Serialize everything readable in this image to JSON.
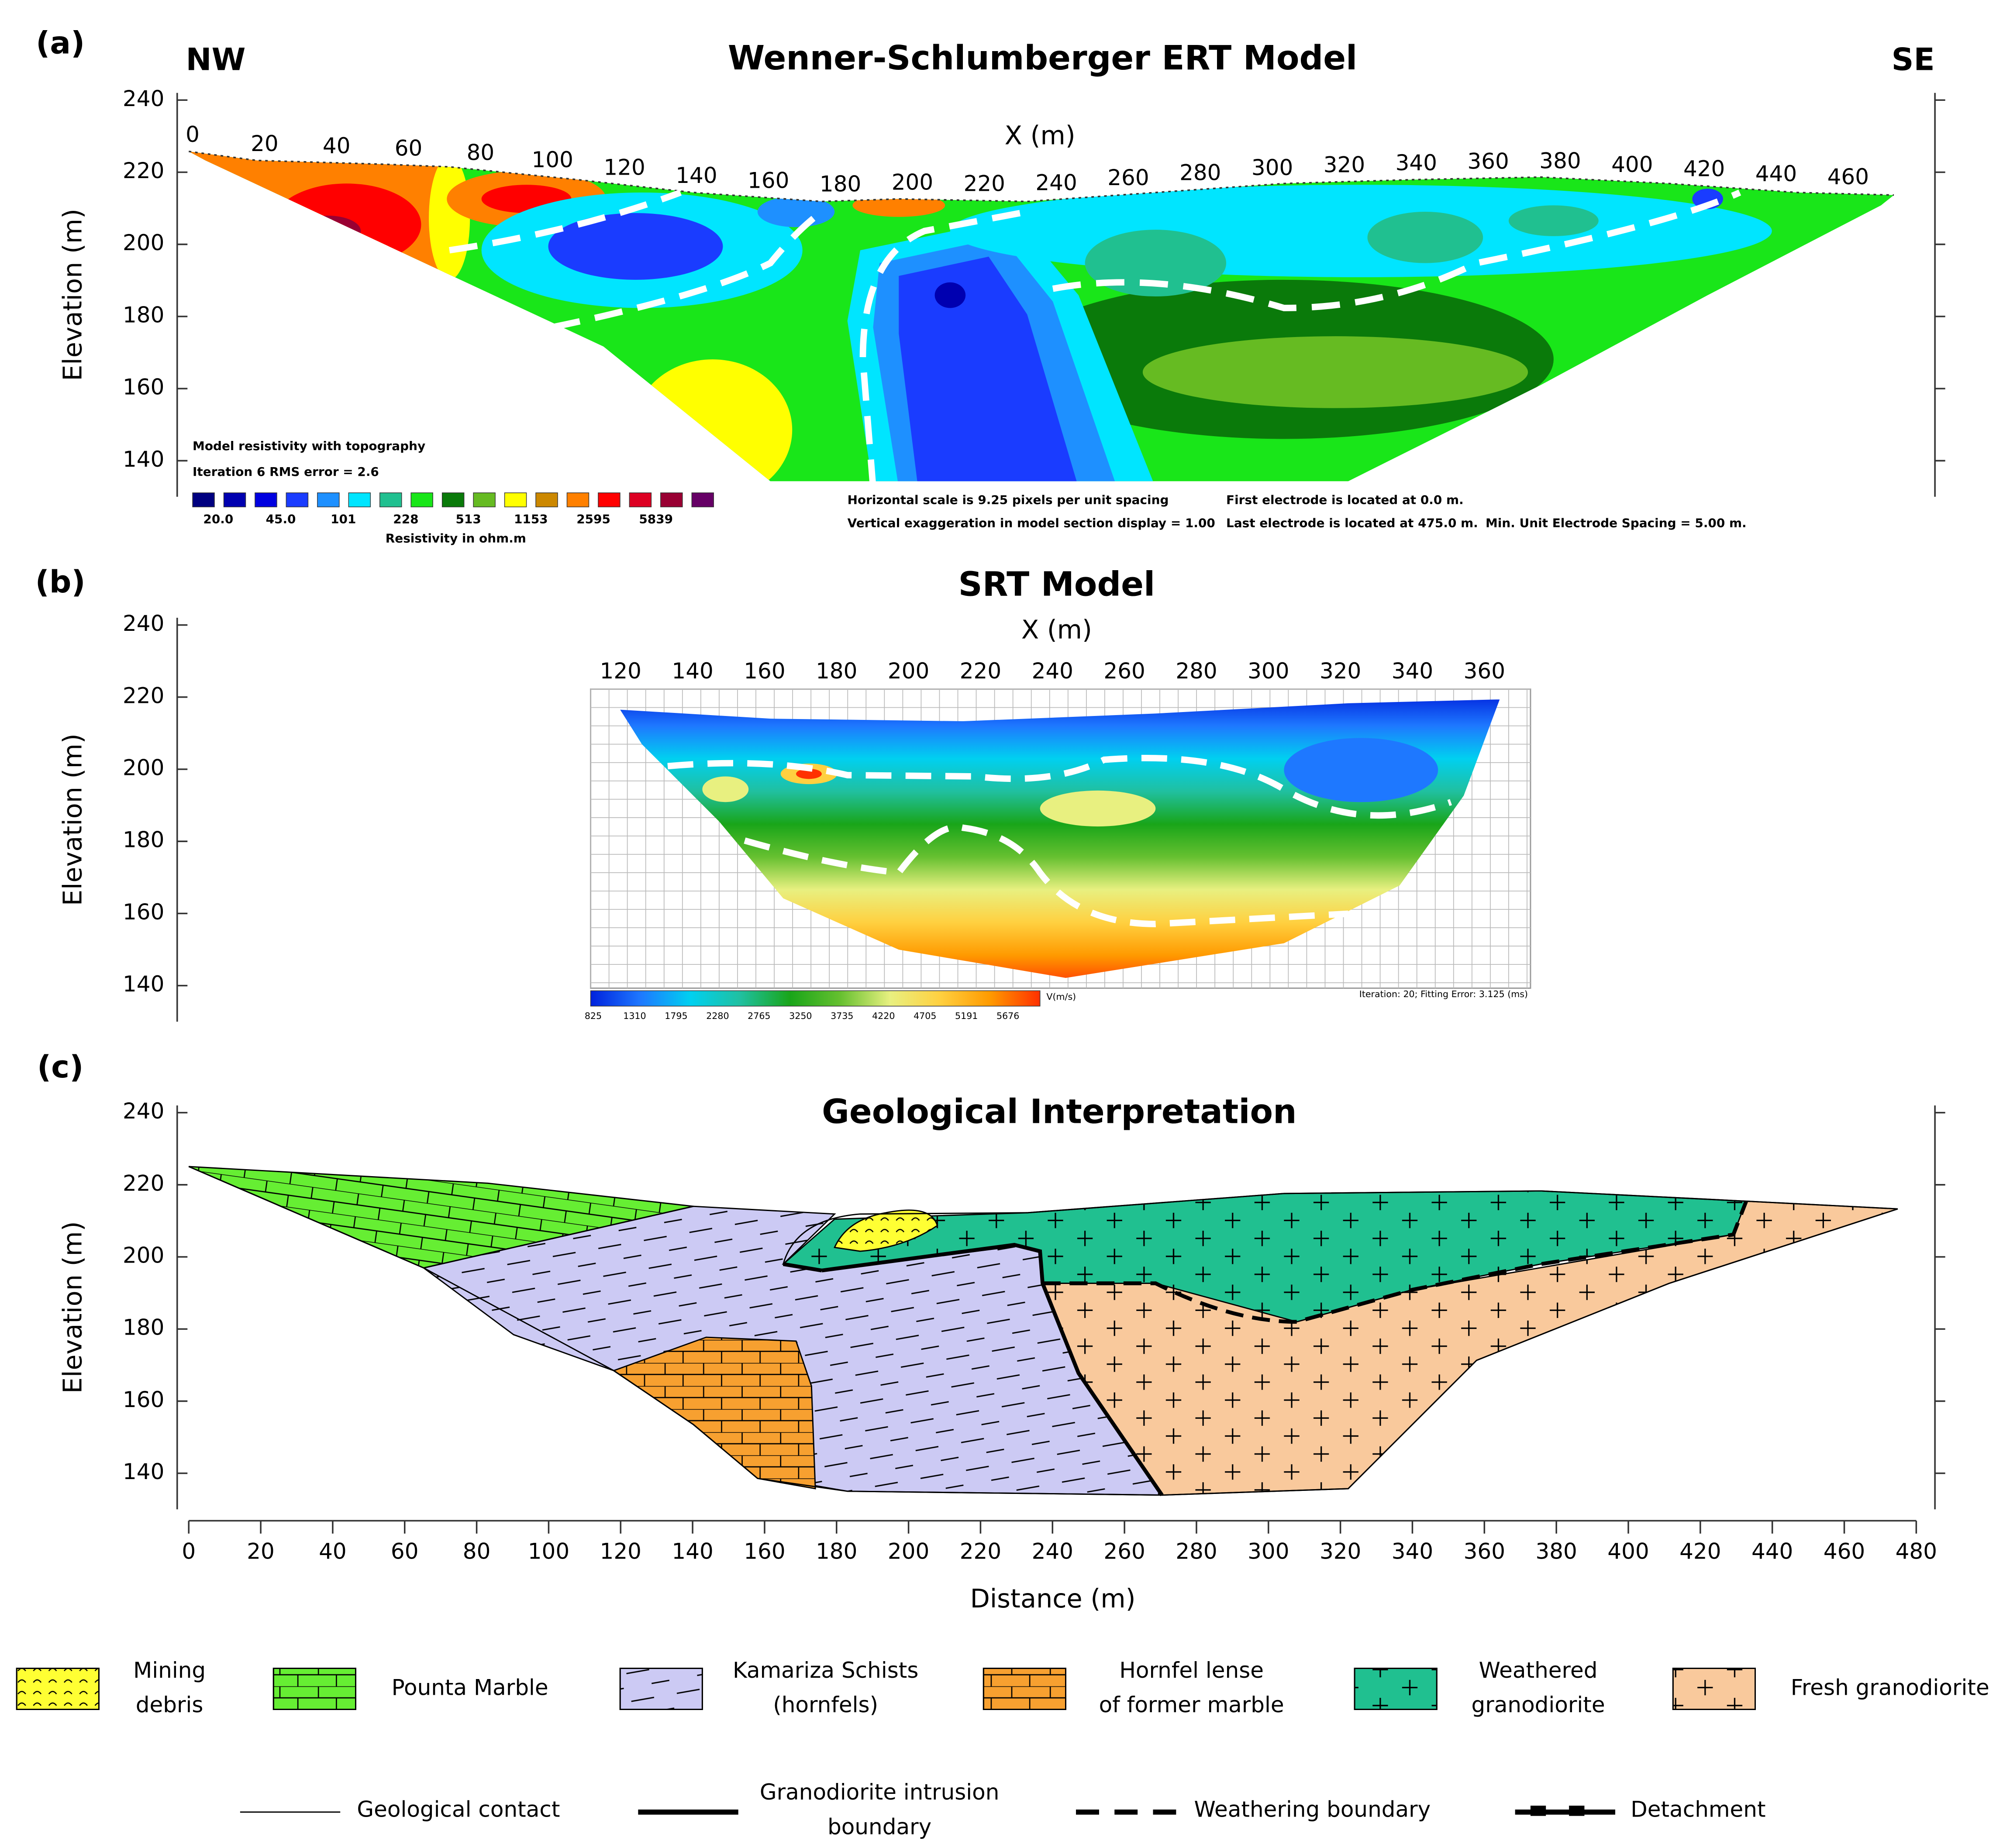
{
  "chart_data": [
    {
      "type": "ert-section",
      "panel_label": "(a)",
      "title": "Wenner-Schlumberger ERT Model",
      "left_label": "NW",
      "right_label": "SE",
      "xlabel": "X (m)",
      "ylabel": "Elevation (m)",
      "ylim": [
        130,
        242
      ],
      "yticks": [
        140,
        160,
        180,
        200,
        220,
        240
      ],
      "xticks": [
        0,
        20,
        40,
        60,
        80,
        100,
        120,
        140,
        160,
        180,
        200,
        220,
        240,
        260,
        280,
        300,
        320,
        340,
        360,
        380,
        400,
        420,
        440,
        460
      ],
      "notes": [
        "Model resistivity with topography",
        "Iteration 6 RMS error = 2.6"
      ],
      "colorbar_colors": [
        "#000080",
        "#0000b0",
        "#0000e0",
        "#1a3cff",
        "#1e90ff",
        "#00e5ff",
        "#20c090",
        "#19e619",
        "#0a7a0a",
        "#66bb22",
        "#ffff00",
        "#cc8800",
        "#ff8000",
        "#ff0000",
        "#dd0022",
        "#990033",
        "#660066"
      ],
      "colorbar_labels": [
        "20.0",
        "45.0",
        "101",
        "228",
        "513",
        "1153",
        "2595",
        "5839"
      ],
      "colorbar_title": "Resistivity in ohm.m",
      "info": [
        "Horizontal scale is 9.25 pixels per unit spacing",
        "Vertical exaggeration in model section display = 1.00",
        "First electrode is located at 0.0  m.",
        "Last electrode is located at 475.0 m.",
        "Min. Unit Electrode Spacing = 5.00 m."
      ]
    },
    {
      "type": "srt-section",
      "panel_label": "(b)",
      "title": "SRT Model",
      "xlabel": "X (m)",
      "ylabel": "Elevation (m)",
      "ylim": [
        130,
        242
      ],
      "yticks": [
        140,
        160,
        180,
        200,
        220,
        240
      ],
      "xticks": [
        120,
        140,
        160,
        180,
        200,
        220,
        240,
        260,
        280,
        300,
        320,
        340,
        360
      ],
      "colorbar_colors": [
        "#0022dd",
        "#1e78ff",
        "#00d0f0",
        "#20c0a0",
        "#19a519",
        "#66c030",
        "#e8f080",
        "#ffd040",
        "#ff9a00",
        "#ff3000"
      ],
      "colorbar_labels": [
        "825",
        "1310",
        "1795",
        "2280",
        "2765",
        "3250",
        "3735",
        "4220",
        "4705",
        "5191",
        "5676"
      ],
      "colorbar_unit": "V(m/s)",
      "info": "Iteration: 20; Fitting Error: 3.125 (ms)"
    },
    {
      "type": "geology-section",
      "panel_label": "(c)",
      "title": "Geological Interpretation",
      "xlabel": "Distance (m)",
      "ylabel": "Elevation (m)",
      "ylim": [
        130,
        242
      ],
      "yticks": [
        140,
        160,
        180,
        200,
        220,
        240
      ],
      "xlim": [
        0,
        480
      ],
      "xticks": [
        0,
        20,
        40,
        60,
        80,
        100,
        120,
        140,
        160,
        180,
        200,
        220,
        240,
        260,
        280,
        300,
        320,
        340,
        360,
        380,
        400,
        420,
        440,
        460,
        480
      ],
      "units": [
        {
          "name": [
            "Mining",
            "debris"
          ],
          "color": "#ffff33"
        },
        {
          "name": [
            "Pounta Marble"
          ],
          "color": "#66ee33"
        },
        {
          "name": [
            "Kamariza Schists",
            "(hornfels)"
          ],
          "color": "#cccaf4"
        },
        {
          "name": [
            "Hornfel lense",
            "of former marble"
          ],
          "color": "#f7a030"
        },
        {
          "name": [
            "Weathered",
            "granodiorite"
          ],
          "color": "#20c090"
        },
        {
          "name": [
            "Fresh granodiorite"
          ],
          "color": "#f9c99c"
        }
      ],
      "lines": [
        {
          "name": [
            "Geological contact"
          ]
        },
        {
          "name": [
            "Granodiorite intrusion",
            "boundary"
          ]
        },
        {
          "name": [
            "Weathering boundary"
          ]
        },
        {
          "name": [
            "Detachment"
          ]
        }
      ]
    }
  ]
}
